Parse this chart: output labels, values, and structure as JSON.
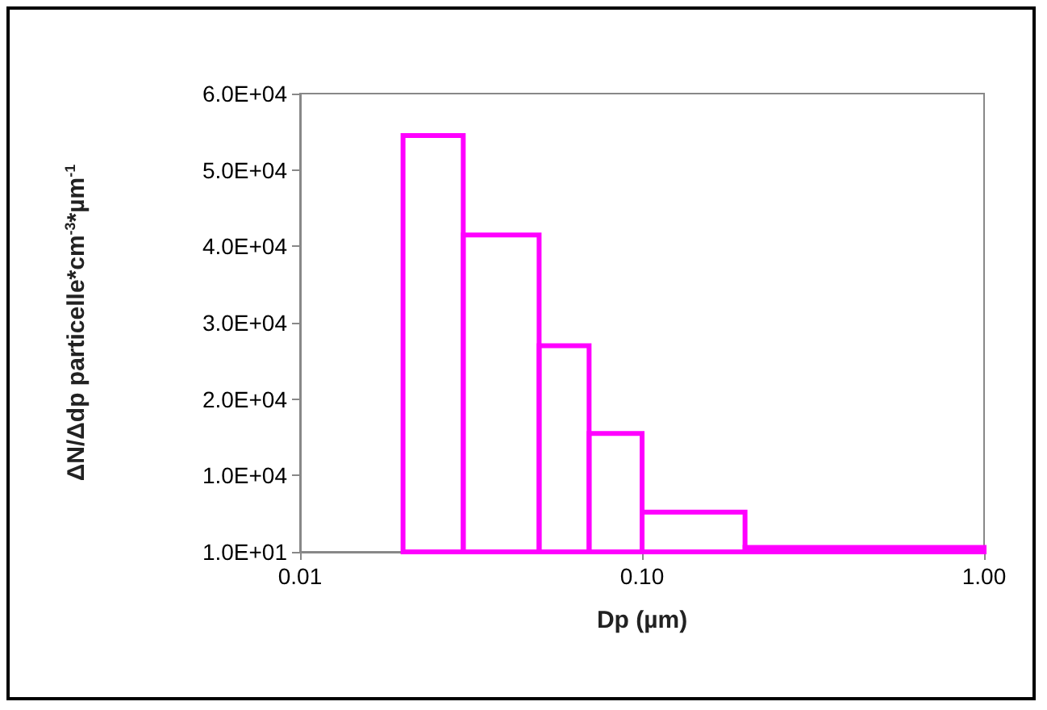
{
  "chart_data": {
    "type": "histogram",
    "xlabel": "Dp (µm)",
    "ylabel": "ΔN/Δdp particelle*cm$^{-3}$*µm$^{-1}$",
    "bins": [
      0.02,
      0.03,
      0.05,
      0.07,
      0.1,
      0.2,
      1.0
    ],
    "values": [
      54500,
      41500,
      27000,
      15500,
      5200,
      600
    ],
    "color": "#ff00ff",
    "log": "x",
    "xlim": [
      0.01,
      1
    ],
    "xticks": [
      {
        "value": 0.01,
        "label": "0.01"
      },
      {
        "value": 0.1,
        "label": "0.10"
      },
      {
        "value": 1,
        "label": "1.00"
      }
    ],
    "ylim": [
      10,
      60000
    ],
    "yticks": [
      {
        "value": 10,
        "label": "1.0E+01"
      },
      {
        "value": 10000,
        "label": "1.0E+04"
      },
      {
        "value": 20000,
        "label": "2.0E+04"
      },
      {
        "value": 30000,
        "label": "3.0E+04"
      },
      {
        "value": 40000,
        "label": "4.0E+04"
      },
      {
        "value": 50000,
        "label": "5.0E+04"
      },
      {
        "value": 60000,
        "label": "6.0E+04"
      }
    ]
  }
}
